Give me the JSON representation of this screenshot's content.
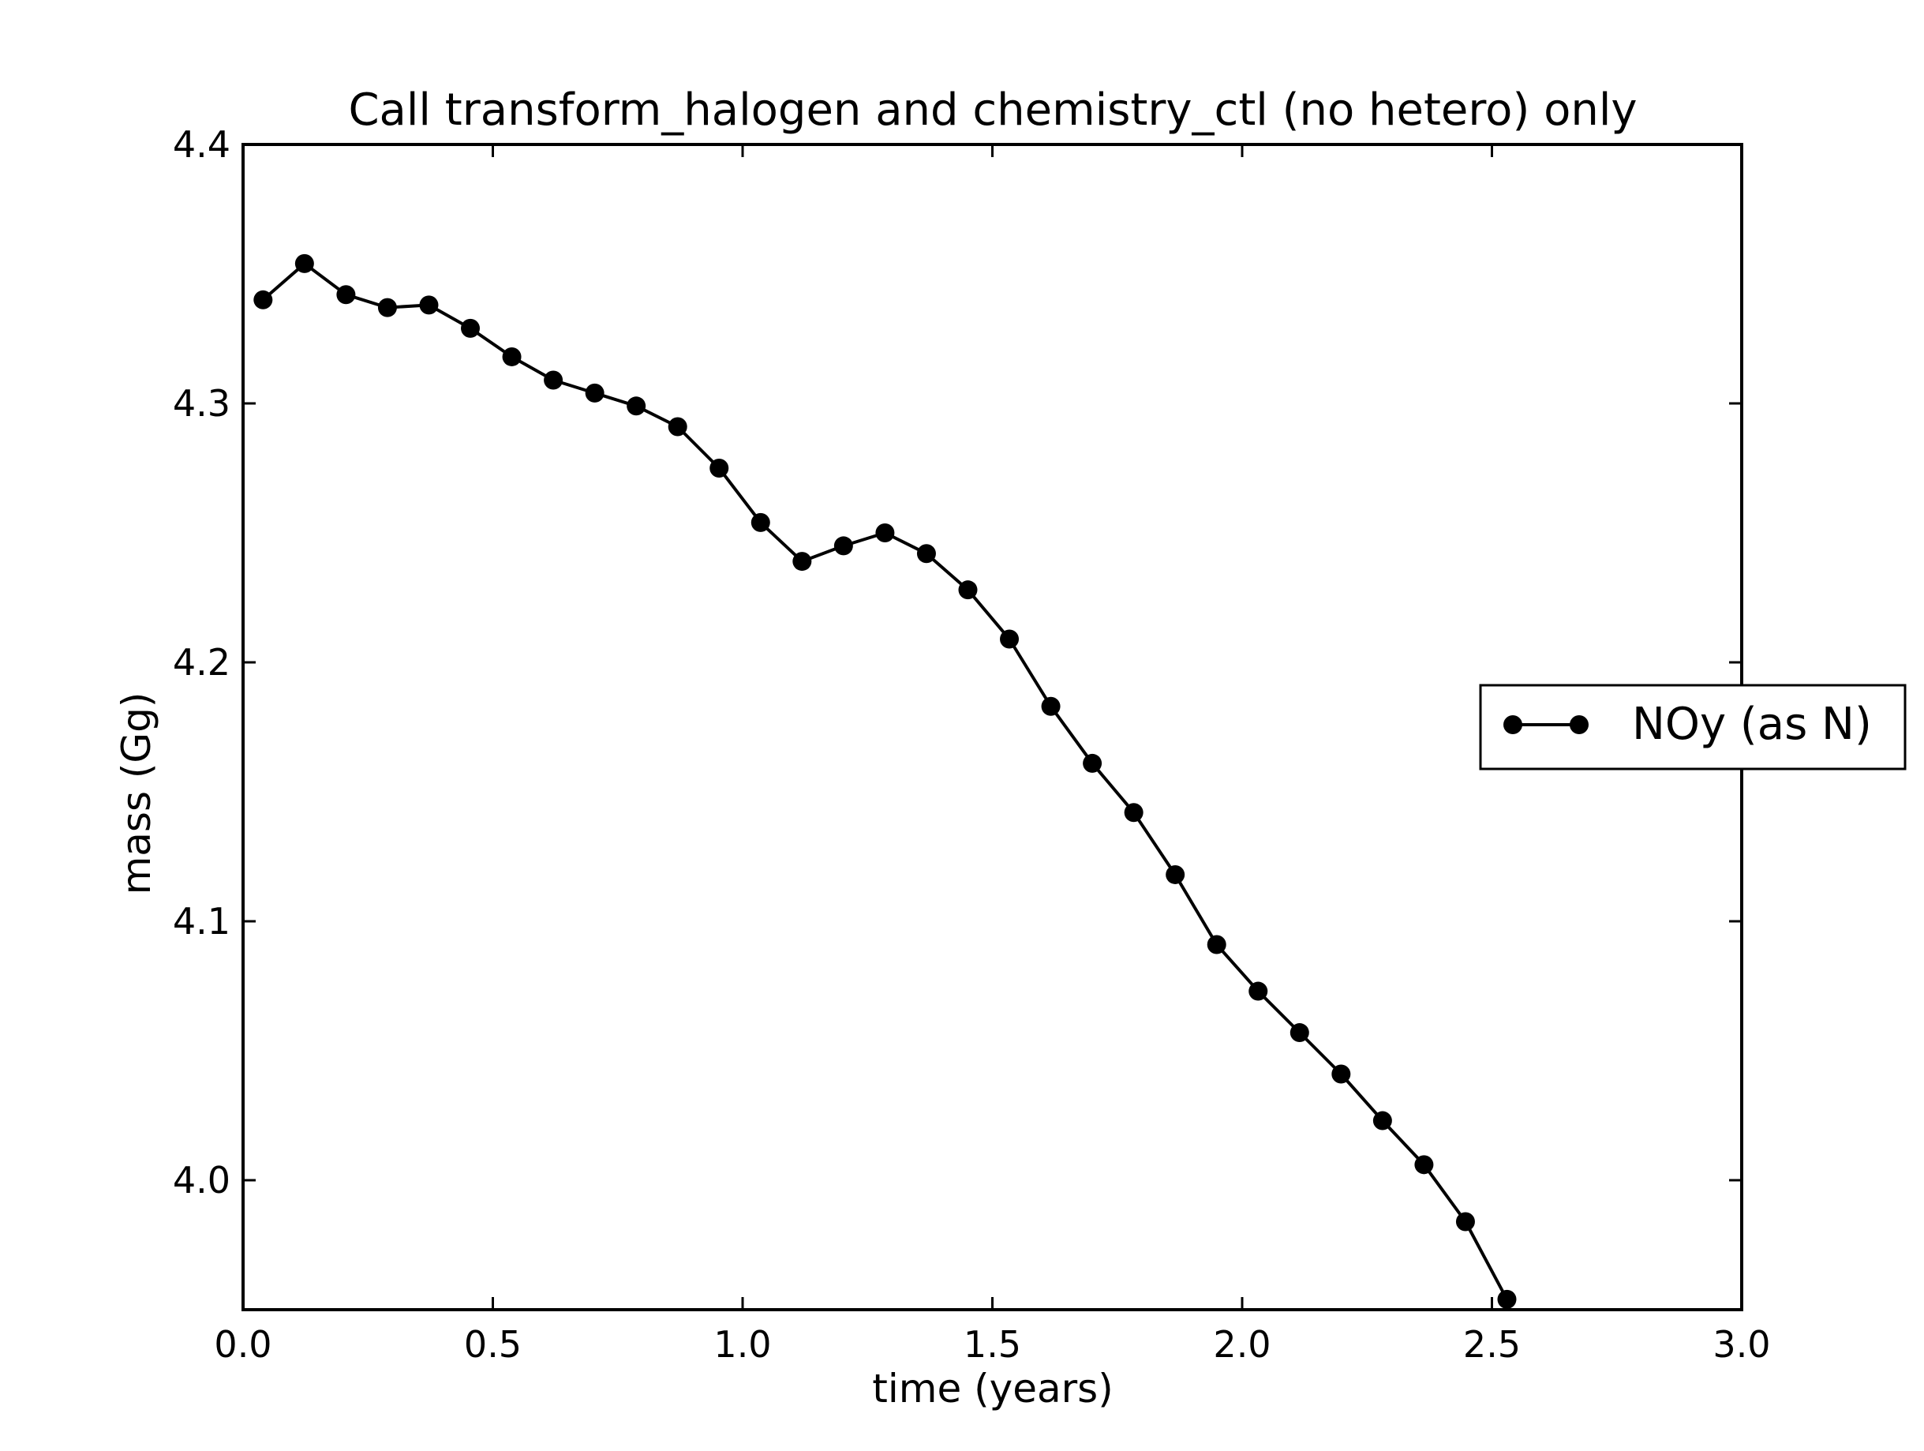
{
  "chart_data": {
    "type": "line",
    "title": "Call transform_halogen and chemistry_ctl (no hetero) only",
    "xlabel": "time (years)",
    "ylabel": "mass (Gg)",
    "xlim": [
      0.0,
      3.0
    ],
    "ylim": [
      3.95,
      4.4
    ],
    "xticks": [
      0.0,
      0.5,
      1.0,
      1.5,
      2.0,
      2.5,
      3.0
    ],
    "xtick_labels": [
      "0.0",
      "0.5",
      "1.0",
      "1.5",
      "2.0",
      "2.5",
      "3.0"
    ],
    "yticks": [
      4.0,
      4.1,
      4.2,
      4.3,
      4.4
    ],
    "ytick_labels": [
      "4.0",
      "4.1",
      "4.2",
      "4.3",
      "4.4"
    ],
    "grid": false,
    "legend_position": "center-right, outside plot",
    "series": [
      {
        "name": "NOy (as N)",
        "color": "#000000",
        "marker": "circle",
        "x": [
          0.04,
          0.123,
          0.206,
          0.289,
          0.372,
          0.455,
          0.538,
          0.621,
          0.704,
          0.787,
          0.87,
          0.953,
          1.036,
          1.119,
          1.202,
          1.285,
          1.368,
          1.451,
          1.534,
          1.617,
          1.7,
          1.783,
          1.866,
          1.949,
          2.032,
          2.115,
          2.198,
          2.281,
          2.364,
          2.447,
          2.53
        ],
        "y": [
          4.34,
          4.354,
          4.342,
          4.337,
          4.338,
          4.329,
          4.318,
          4.309,
          4.304,
          4.299,
          4.291,
          4.275,
          4.254,
          4.239,
          4.245,
          4.25,
          4.242,
          4.228,
          4.209,
          4.183,
          4.161,
          4.142,
          4.118,
          4.091,
          4.073,
          4.057,
          4.041,
          4.023,
          4.006,
          3.984,
          3.954
        ]
      }
    ]
  }
}
